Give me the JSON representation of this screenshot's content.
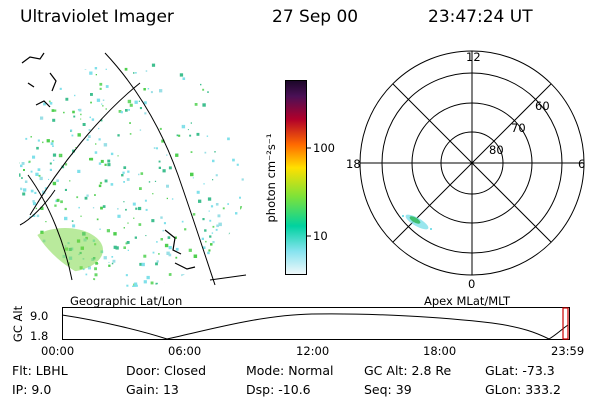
{
  "header": {
    "instrument": "Ultraviolet Imager",
    "date": "27 Sep 00",
    "time": "23:47:24 UT"
  },
  "left_panel": {
    "caption": "Geographic Lat/Lon"
  },
  "right_panel": {
    "caption": "Apex MLat/MLT",
    "mlt_labels": {
      "top": "12",
      "left": "18",
      "right": "6",
      "bottom": "0"
    },
    "lat_labels": [
      "60",
      "70",
      "80"
    ]
  },
  "colorbar": {
    "unit_label": "photon cm⁻²s⁻¹",
    "ticks": [
      "100",
      "10"
    ],
    "colors": [
      "#2a0a3a",
      "#b1002a",
      "#ff6a00",
      "#ffe000",
      "#7ce23a",
      "#00d2a0",
      "#86e3ef",
      "#eef7f9"
    ]
  },
  "timeline": {
    "y_label": "GC Alt",
    "y_ticks": [
      "9.0",
      "1.8"
    ],
    "x_ticks": [
      "00:00",
      "06:00",
      "12:00",
      "18:00",
      "23:59"
    ]
  },
  "info_rows": [
    [
      {
        "key": "Flt:",
        "value": "LBHL"
      },
      {
        "key": "Door:",
        "value": "Closed"
      },
      {
        "key": "Mode:",
        "value": "Normal"
      },
      {
        "key": "GC Alt:",
        "value": "2.8 Re"
      },
      {
        "key": "GLat:",
        "value": "-73.3"
      }
    ],
    [
      {
        "key": "IP:",
        "value": "9.0"
      },
      {
        "key": "Gain:",
        "value": "13"
      },
      {
        "key": "Dsp:",
        "value": "-10.6"
      },
      {
        "key": "Seq:",
        "value": "39"
      },
      {
        "key": "GLon:",
        "value": "333.2"
      }
    ]
  ],
  "theme": {
    "marker": "#cc0000",
    "emission_green": "#4fcf4f",
    "emission_cyan": "#7fe0ea"
  }
}
